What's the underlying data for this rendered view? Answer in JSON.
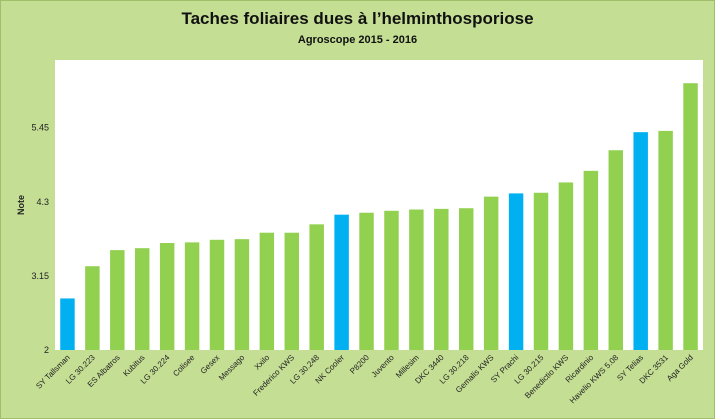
{
  "chart_data": {
    "type": "bar",
    "title": "Taches foliaires dues à l’helminthosporiose",
    "subtitle": "Agroscope 2015 - 2016",
    "ylabel": "Note",
    "xlabel": "",
    "ylim": [
      2,
      6.5
    ],
    "yticks": [
      "2",
      "3.15",
      "4.3",
      "5.45"
    ],
    "ytick_values": [
      2,
      3.15,
      4.3,
      5.45
    ],
    "grid": false,
    "legend": "none",
    "colors": {
      "default": "#92d050",
      "highlight": "#00b0f0"
    },
    "categories": [
      "SY Tallsman",
      "LG 30.223",
      "ES Albatros",
      "Kubitus",
      "LG 30.224",
      "Colisee",
      "Gesex",
      "Messago",
      "Xxilo",
      "Frederico KWS",
      "LG 30.248",
      "NK Cooler",
      "P8200",
      "Juvento",
      "Millesim",
      "DKC 3440",
      "LG 30.218",
      "Gemalis KWS",
      "SY Prachi",
      "LG 30.215",
      "Benedictio KWS",
      "Ricardinio",
      "Havelio KWS 5.08",
      "SY Telias",
      "DKC 3531",
      "Aga Gold"
    ],
    "values": [
      2.8,
      3.3,
      3.55,
      3.58,
      3.66,
      3.67,
      3.71,
      3.72,
      3.82,
      3.82,
      3.95,
      4.1,
      4.13,
      4.16,
      4.18,
      4.19,
      4.2,
      4.38,
      4.43,
      4.44,
      4.6,
      4.78,
      5.1,
      5.38,
      5.4,
      6.14
    ],
    "highlight": [
      true,
      false,
      false,
      false,
      false,
      false,
      false,
      false,
      false,
      false,
      false,
      true,
      false,
      false,
      false,
      false,
      false,
      false,
      true,
      false,
      false,
      false,
      false,
      true,
      false,
      false
    ]
  }
}
